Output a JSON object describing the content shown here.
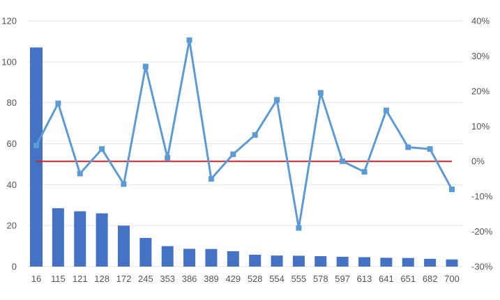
{
  "chart_data": {
    "type": "bar",
    "combo": "bar-line",
    "title": "",
    "xlabel": "",
    "ylabel": "",
    "y2label": "",
    "categories": [
      "16",
      "115",
      "121",
      "128",
      "172",
      "245",
      "353",
      "386",
      "389",
      "429",
      "528",
      "554",
      "555",
      "578",
      "597",
      "613",
      "641",
      "651",
      "682",
      "700"
    ],
    "bar_series": {
      "values": [
        107,
        28.5,
        27,
        26,
        20,
        14,
        10,
        8.7,
        8.6,
        7.5,
        5.8,
        5.4,
        5.3,
        5.1,
        4.8,
        4.6,
        4.3,
        4.2,
        3.8,
        3.5
      ],
      "color": "#4472C4"
    },
    "line_series": {
      "values": [
        4.5,
        16.5,
        -3.5,
        3.5,
        -6.5,
        27,
        1,
        34.5,
        -5,
        2,
        7.5,
        17.5,
        -19,
        19.5,
        0,
        -3,
        14.5,
        4,
        3.5,
        -8
      ],
      "color": "#5B9BD5",
      "marker": "square"
    },
    "reference_line": {
      "value": 0,
      "axis": "right",
      "color": "#E02020"
    },
    "y_axis_left": {
      "ylim": [
        0,
        120
      ],
      "ticks": [
        0,
        20,
        40,
        60,
        80,
        100,
        120
      ],
      "tick_labels": [
        "0",
        "20",
        "40",
        "60",
        "80",
        "100",
        "120"
      ]
    },
    "y_axis_right": {
      "ylim": [
        -30,
        40
      ],
      "ticks": [
        -30,
        -20,
        -10,
        0,
        10,
        20,
        30,
        40
      ],
      "tick_labels": [
        "-30%",
        "-20%",
        "-10%",
        "0%",
        "10%",
        "20%",
        "30%",
        "40%"
      ]
    },
    "grid": true,
    "legend": "none"
  }
}
